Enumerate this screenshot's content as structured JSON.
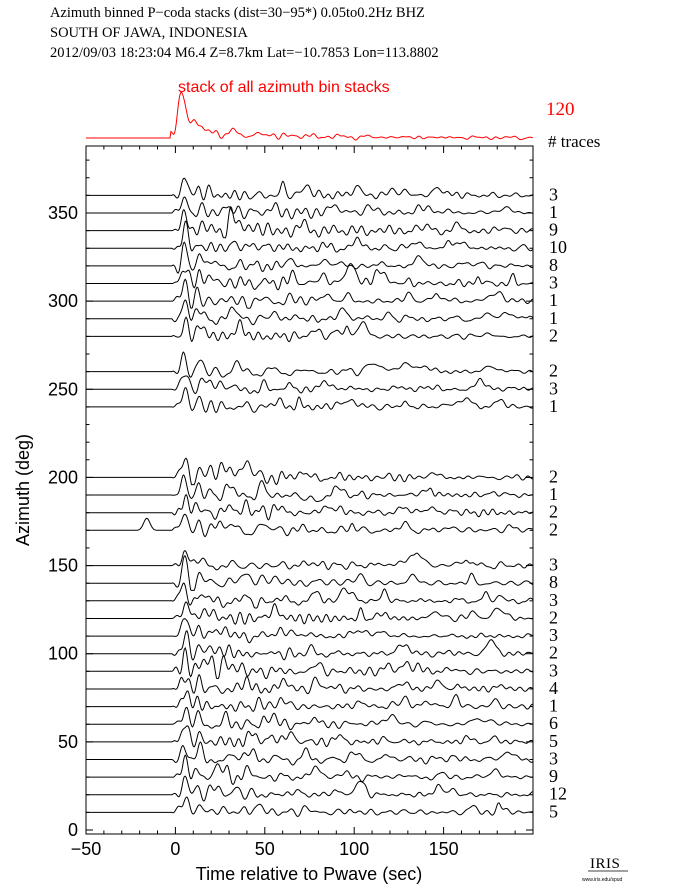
{
  "header": {
    "line1": "Azimuth binned P−coda stacks (dist=30−95*)  0.05to0.2Hz  BHZ",
    "line2": "SOUTH OF JAWA, INDONESIA",
    "line3": "2012/09/03   18:23:04  M6.4  Z=8.7km Lat=−10.7853 Lon=113.8802"
  },
  "summary": {
    "label": "stack of all azimuth bin stacks",
    "count": "120",
    "count_header": "# traces",
    "color": "#ff0000"
  },
  "logo": {
    "text": "IRIS",
    "subtext": "www.iris.edu/spud"
  },
  "chart_data": {
    "type": "line",
    "xlabel": "Time relative to Pwave (sec)",
    "ylabel": "Azimuth (deg)",
    "xlim": [
      -50,
      200
    ],
    "ylim": [
      0,
      390
    ],
    "xticks": [
      -50,
      0,
      50,
      100,
      150
    ],
    "xtick_labels": [
      "−50",
      "0",
      "50",
      "100",
      "150"
    ],
    "yticks": [
      0,
      50,
      100,
      150,
      200,
      250,
      300,
      350
    ],
    "yticks_minor": [
      10,
      20,
      30,
      40,
      60,
      70,
      80,
      90,
      110,
      120,
      130,
      140,
      160,
      170,
      180,
      190,
      210,
      220,
      230,
      240,
      260,
      270,
      280,
      290,
      310,
      320,
      330,
      340,
      360,
      370,
      380
    ],
    "grid": false,
    "trace_color": "#000000",
    "series": [
      {
        "azimuth": 360,
        "traces": "3"
      },
      {
        "azimuth": 350,
        "traces": "1"
      },
      {
        "azimuth": 340,
        "traces": "9"
      },
      {
        "azimuth": 330,
        "traces": "10"
      },
      {
        "azimuth": 320,
        "traces": "8"
      },
      {
        "azimuth": 310,
        "traces": "3"
      },
      {
        "azimuth": 300,
        "traces": "1"
      },
      {
        "azimuth": 290,
        "traces": "1"
      },
      {
        "azimuth": 280,
        "traces": "2"
      },
      {
        "azimuth": 260,
        "traces": "2"
      },
      {
        "azimuth": 250,
        "traces": "3"
      },
      {
        "azimuth": 240,
        "traces": "1"
      },
      {
        "azimuth": 200,
        "traces": "2"
      },
      {
        "azimuth": 190,
        "traces": "1"
      },
      {
        "azimuth": 180,
        "traces": "2"
      },
      {
        "azimuth": 170,
        "traces": "2"
      },
      {
        "azimuth": 150,
        "traces": "3"
      },
      {
        "azimuth": 140,
        "traces": "8"
      },
      {
        "azimuth": 130,
        "traces": "3"
      },
      {
        "azimuth": 120,
        "traces": "2"
      },
      {
        "azimuth": 110,
        "traces": "3"
      },
      {
        "azimuth": 100,
        "traces": "2"
      },
      {
        "azimuth": 90,
        "traces": "3"
      },
      {
        "azimuth": 80,
        "traces": "4"
      },
      {
        "azimuth": 70,
        "traces": "1"
      },
      {
        "azimuth": 60,
        "traces": "6"
      },
      {
        "azimuth": 50,
        "traces": "5"
      },
      {
        "azimuth": 40,
        "traces": "3"
      },
      {
        "azimuth": 30,
        "traces": "9"
      },
      {
        "azimuth": 20,
        "traces": "12"
      },
      {
        "azimuth": 10,
        "traces": "5"
      }
    ]
  }
}
